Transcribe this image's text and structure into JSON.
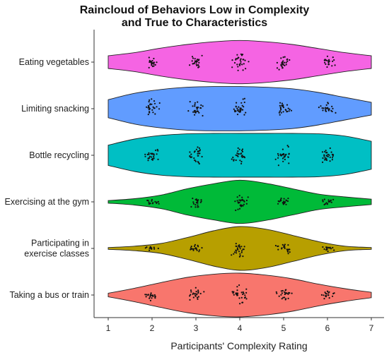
{
  "chart_data": {
    "type": "violin",
    "title_lines": [
      "Raincloud of Behaviors Low in Complexity",
      "and True to Characteristics"
    ],
    "xlabel": "Participants' Complexity Rating",
    "ylabel": "",
    "xlim": [
      1,
      7
    ],
    "x_ticks": [
      "1",
      "2",
      "3",
      "4",
      "5",
      "6",
      "7"
    ],
    "grid": false,
    "legend": "none",
    "series": [
      {
        "label": "Eating vegetables",
        "label_lines": [
          "Eating vegetables"
        ],
        "color": "#F564E3",
        "rating_distribution": [
          [
            1.0,
            0.28
          ],
          [
            1.6,
            0.42
          ],
          [
            2.2,
            0.62
          ],
          [
            2.8,
            0.78
          ],
          [
            3.4,
            0.9
          ],
          [
            4.0,
            0.96
          ],
          [
            4.6,
            0.9
          ],
          [
            5.2,
            0.78
          ],
          [
            5.8,
            0.6
          ],
          [
            6.4,
            0.42
          ],
          [
            7.0,
            0.28
          ]
        ],
        "rating_clusters": [
          2,
          3,
          4,
          5,
          6
        ]
      },
      {
        "label": "Limiting snacking",
        "label_lines": [
          "Limiting snacking"
        ],
        "color": "#619CFF",
        "rating_distribution": [
          [
            1.0,
            0.4
          ],
          [
            1.6,
            0.68
          ],
          [
            2.2,
            0.85
          ],
          [
            2.8,
            0.95
          ],
          [
            3.4,
            0.98
          ],
          [
            4.0,
            0.98
          ],
          [
            4.6,
            0.95
          ],
          [
            5.2,
            0.88
          ],
          [
            5.8,
            0.72
          ],
          [
            6.4,
            0.5
          ],
          [
            7.0,
            0.28
          ]
        ],
        "rating_clusters": [
          2,
          3,
          4,
          5,
          6
        ]
      },
      {
        "label": "Bottle recycling",
        "label_lines": [
          "Bottle recycling"
        ],
        "color": "#00BFC4",
        "rating_distribution": [
          [
            1.0,
            0.45
          ],
          [
            1.6,
            0.72
          ],
          [
            2.2,
            0.88
          ],
          [
            2.8,
            0.95
          ],
          [
            3.4,
            0.97
          ],
          [
            4.0,
            0.97
          ],
          [
            4.6,
            0.97
          ],
          [
            5.2,
            0.97
          ],
          [
            5.8,
            0.95
          ],
          [
            6.4,
            0.85
          ],
          [
            7.0,
            0.62
          ]
        ],
        "rating_clusters": [
          2,
          3,
          4,
          5,
          6
        ]
      },
      {
        "label": "Exercising at the gym",
        "label_lines": [
          "Exercising at the gym"
        ],
        "color": "#00BA38",
        "rating_distribution": [
          [
            1.0,
            0.06
          ],
          [
            1.6,
            0.14
          ],
          [
            2.2,
            0.3
          ],
          [
            2.8,
            0.58
          ],
          [
            3.4,
            0.8
          ],
          [
            4.0,
            0.96
          ],
          [
            4.6,
            0.82
          ],
          [
            5.2,
            0.58
          ],
          [
            5.8,
            0.34
          ],
          [
            6.4,
            0.22
          ],
          [
            7.0,
            0.12
          ]
        ],
        "rating_clusters": [
          2,
          3,
          4,
          5,
          6
        ]
      },
      {
        "label": "Participating in exercise classes",
        "label_lines": [
          "Participating in",
          "exercise classes"
        ],
        "color": "#B79F00",
        "rating_distribution": [
          [
            1.0,
            0.04
          ],
          [
            1.6,
            0.1
          ],
          [
            2.2,
            0.22
          ],
          [
            2.8,
            0.48
          ],
          [
            3.4,
            0.78
          ],
          [
            4.0,
            0.97
          ],
          [
            4.6,
            0.85
          ],
          [
            5.2,
            0.58
          ],
          [
            5.8,
            0.3
          ],
          [
            6.4,
            0.1
          ],
          [
            7.0,
            0.04
          ]
        ],
        "rating_clusters": [
          2,
          3,
          4,
          5,
          6
        ]
      },
      {
        "label": "Taking a bus or train",
        "label_lines": [
          "Taking a bus or train"
        ],
        "color": "#F8766D",
        "rating_distribution": [
          [
            1.0,
            0.08
          ],
          [
            1.6,
            0.3
          ],
          [
            2.2,
            0.55
          ],
          [
            2.8,
            0.78
          ],
          [
            3.4,
            0.92
          ],
          [
            4.0,
            0.97
          ],
          [
            4.6,
            0.88
          ],
          [
            5.2,
            0.72
          ],
          [
            5.8,
            0.48
          ],
          [
            6.4,
            0.28
          ],
          [
            7.0,
            0.12
          ]
        ],
        "rating_clusters": [
          2,
          3,
          4,
          5,
          6
        ]
      }
    ]
  }
}
